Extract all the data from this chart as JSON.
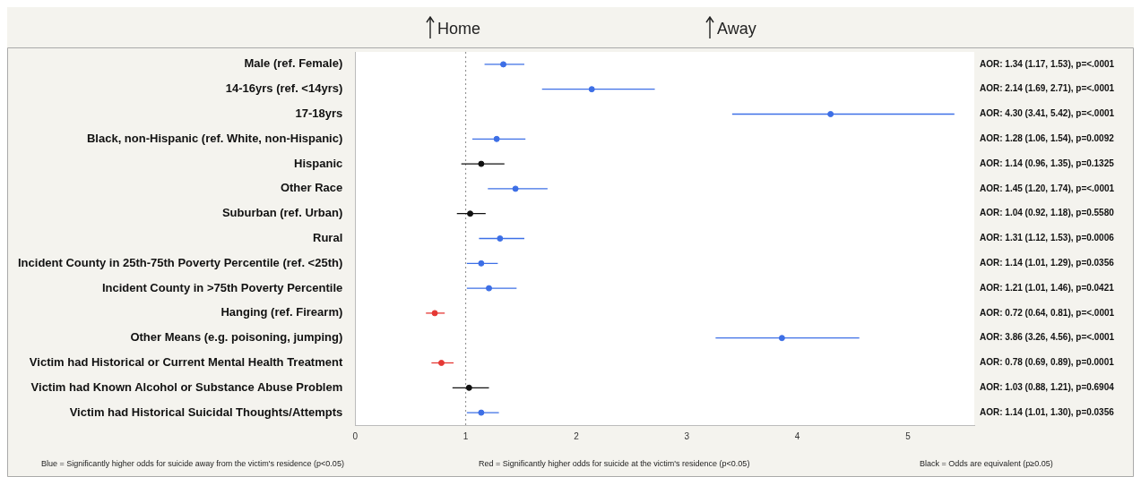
{
  "chart_data": {
    "type": "scatter",
    "orientation": "horizontal",
    "marker": "circle",
    "categories": [
      "Male (ref. Female)",
      "14-16yrs (ref. <14yrs)",
      "17-18yrs",
      "Black, non-Hispanic (ref. White, non-Hispanic)",
      "Hispanic",
      "Other Race",
      "Suburban (ref. Urban)",
      "Rural",
      "Incident County in 25th-75th Poverty Percentile (ref. <25th)",
      "Incident County in >75th Poverty Percentile",
      "Hanging (ref. Firearm)",
      "Other Means (e.g. poisoning, jumping)",
      "Victim had Historical or Current Mental Health Treatment",
      "Victim had Known Alcohol or Substance Abuse Problem",
      "Victim had Historical Suicidal Thoughts/Attempts"
    ],
    "series": [
      {
        "color": "#3d6fe6",
        "values": [
          1.34,
          2.14,
          4.3,
          1.28,
          null,
          1.45,
          null,
          1.31,
          1.14,
          1.21,
          null,
          3.86,
          null,
          null,
          1.14
        ],
        "errors": [
          [
            1.17,
            1.53
          ],
          [
            1.69,
            2.71
          ],
          [
            3.41,
            5.42
          ],
          [
            1.06,
            1.54
          ],
          null,
          [
            1.2,
            1.74
          ],
          null,
          [
            1.12,
            1.53
          ],
          [
            1.01,
            1.29
          ],
          [
            1.01,
            1.46
          ],
          null,
          [
            3.26,
            4.56
          ],
          null,
          null,
          [
            1.01,
            1.3
          ]
        ]
      },
      {
        "color": "#111111",
        "values": [
          null,
          null,
          null,
          null,
          1.14,
          null,
          1.04,
          null,
          null,
          null,
          null,
          null,
          null,
          1.03,
          null
        ],
        "errors": [
          null,
          null,
          null,
          null,
          [
            0.96,
            1.35
          ],
          null,
          [
            0.92,
            1.18
          ],
          null,
          null,
          null,
          null,
          null,
          null,
          [
            0.88,
            1.21
          ],
          null
        ]
      },
      {
        "color": "#e53935",
        "values": [
          null,
          null,
          null,
          null,
          null,
          null,
          null,
          null,
          null,
          null,
          0.72,
          null,
          0.78,
          null,
          null
        ],
        "errors": [
          null,
          null,
          null,
          null,
          null,
          null,
          null,
          null,
          null,
          null,
          [
            0.64,
            0.81
          ],
          null,
          [
            0.69,
            0.89
          ],
          null,
          null
        ]
      }
    ],
    "value_labels": [
      "AOR: 1.34 (1.17, 1.53), p=<.0001",
      "AOR: 2.14 (1.69, 2.71), p=<.0001",
      "AOR: 4.30 (3.41, 5.42), p=<.0001",
      "AOR: 1.28 (1.06, 1.54), p=0.0092",
      "AOR: 1.14 (0.96, 1.35), p=0.1325",
      "AOR: 1.45 (1.20, 1.74), p=<.0001",
      "AOR: 1.04 (0.92, 1.18), p=0.5580",
      "AOR: 1.31 (1.12, 1.53), p=0.0006",
      "AOR: 1.14 (1.01, 1.29), p=0.0356",
      "AOR: 1.21 (1.01, 1.46), p=0.0421",
      "AOR: 0.72 (0.64, 0.81), p=<.0001",
      "AOR: 3.86 (3.26, 4.56), p=<.0001",
      "AOR: 0.78 (0.69, 0.89), p=0.0001",
      "AOR: 1.03 (0.88, 1.21), p=0.6904",
      "AOR: 1.14 (1.01, 1.30), p=0.0356"
    ],
    "xlim": [
      0,
      5.6
    ],
    "xticks": [
      0,
      1,
      2,
      3,
      4,
      5
    ],
    "ref_lines": [
      {
        "axis": "x",
        "value": 1,
        "color": "#888888",
        "line_style": "dotted"
      }
    ],
    "annotations": [
      "Home",
      "Away",
      "Blue = Significantly higher odds for suicide away from the victim's residence (p<0.05)",
      "Red = Significantly higher odds for suicide at the victim's residence (p<0.05)",
      "Black = Odds are equivalent (p≥0.05)"
    ]
  }
}
